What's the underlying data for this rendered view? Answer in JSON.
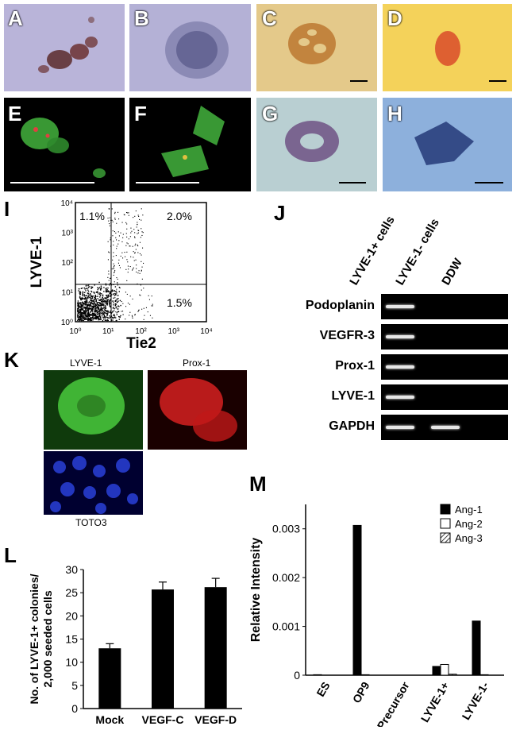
{
  "panels": {
    "A": "A",
    "B": "B",
    "C": "C",
    "D": "D",
    "E": "E",
    "F": "F",
    "G": "G",
    "H": "H",
    "I": "I",
    "J": "J",
    "K": "K",
    "L": "L",
    "M": "M"
  },
  "flow": {
    "ylabel": "LYVE-1",
    "xlabel": "Tie2",
    "q_ul": "1.1%",
    "q_ur": "2.0%",
    "q_lr": "1.5%",
    "xticks": [
      "10⁰",
      "10¹",
      "10²",
      "10³",
      "10⁴"
    ],
    "yticks": [
      "10⁰",
      "10¹",
      "10²",
      "10³",
      "10⁴"
    ]
  },
  "gel": {
    "lanes": [
      "LYVE-1+ cells",
      "LYVE-1- cells",
      "DDW"
    ],
    "genes": [
      "Podoplanin",
      "VEGFR-3",
      "Prox-1",
      "LYVE-1",
      "GAPDH"
    ]
  },
  "stain": {
    "lyve": "LYVE-1",
    "prox": "Prox-1",
    "toto": "TOTO3"
  },
  "chart_data": [
    {
      "type": "bar",
      "categories": [
        "Mock",
        "VEGF-C",
        "VEGF-D"
      ],
      "values": [
        13,
        25.7,
        26.2
      ],
      "errors": [
        1.0,
        1.6,
        1.9
      ],
      "ylabel": "No. of LYVE-1+ colonies/ 2,000 seeded cells",
      "ylabel_lines": [
        "No. of LYVE-1+ colonies/",
        "2,000 seeded cells"
      ],
      "ylim": [
        0,
        30
      ],
      "yticks": [
        0,
        5,
        10,
        15,
        20,
        25,
        30
      ]
    },
    {
      "type": "bar",
      "categories": [
        "ES",
        "OP9",
        "Precursor",
        "LYVE-1+",
        "LYVE-1-"
      ],
      "series": [
        {
          "name": "Ang-1",
          "values": [
            1e-05,
            0.00307,
            0,
            0.00018,
            0.00111
          ]
        },
        {
          "name": "Ang-2",
          "values": [
            0,
            1e-05,
            0,
            0.00022,
            1e-05
          ]
        },
        {
          "name": "Ang-3",
          "values": [
            0,
            0,
            0,
            2e-05,
            0
          ]
        }
      ],
      "ylabel": "Relative Intensity",
      "ylim": [
        0,
        0.0035
      ],
      "yticks": [
        "0",
        "0.001",
        "0.002",
        "0.003"
      ],
      "ytick_values": [
        0,
        0.001,
        0.002,
        0.003
      ],
      "legend_position": "top-right"
    }
  ]
}
